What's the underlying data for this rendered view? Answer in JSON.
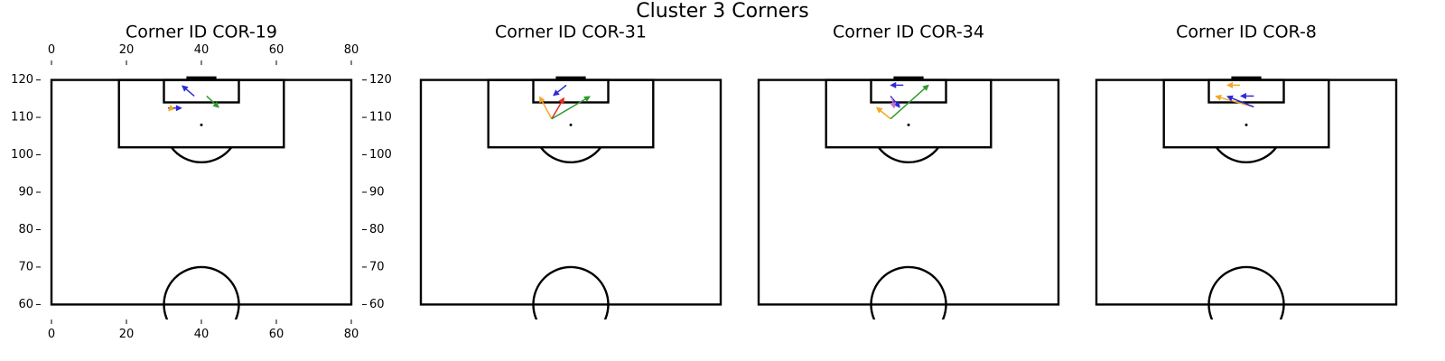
{
  "title": "Cluster 3 Corners",
  "chart_data": [
    {
      "type": "pitch",
      "title": "Corner ID COR-19",
      "xlim": [
        0,
        80
      ],
      "ylim": [
        56,
        124
      ],
      "xticks": [
        0,
        20,
        40,
        60,
        80
      ],
      "xtick_sides": [
        "top",
        "bottom"
      ],
      "yticks": [
        60,
        70,
        80,
        90,
        100,
        110,
        120
      ],
      "ytick_sides": [
        "left",
        "right"
      ],
      "arrows": [
        {
          "x": 38.1,
          "y": 115.7,
          "end_x": 34.7,
          "end_y": 118.6,
          "color": "#2b2bd6"
        },
        {
          "x": 41.4,
          "y": 115.7,
          "end_x": 44.8,
          "end_y": 112.5,
          "color": "#2e9a2e"
        },
        {
          "x": 31.1,
          "y": 112.5,
          "end_x": 34.9,
          "end_y": 112.5,
          "color": "#2b2bd6"
        },
        {
          "x": 32.0,
          "y": 112.5,
          "end_x": 31.1,
          "end_y": 111.6,
          "color": "#f5a623"
        }
      ]
    },
    {
      "type": "pitch",
      "title": "Corner ID COR-31",
      "xlim": [
        0,
        80
      ],
      "ylim": [
        56,
        124
      ],
      "arrows": [
        {
          "x": 34.9,
          "y": 109.6,
          "end_x": 31.6,
          "end_y": 115.7,
          "color": "#f5a623"
        },
        {
          "x": 34.9,
          "y": 109.6,
          "end_x": 38.3,
          "end_y": 115.4,
          "color": "#e03020"
        },
        {
          "x": 34.9,
          "y": 109.6,
          "end_x": 45.3,
          "end_y": 115.7,
          "color": "#2e9a2e"
        },
        {
          "x": 38.8,
          "y": 118.6,
          "end_x": 35.2,
          "end_y": 115.7,
          "color": "#2b2bd6"
        }
      ]
    },
    {
      "type": "pitch",
      "title": "Corner ID COR-34",
      "xlim": [
        0,
        80
      ],
      "ylim": [
        56,
        124
      ],
      "arrows": [
        {
          "x": 35.2,
          "y": 109.6,
          "end_x": 31.3,
          "end_y": 112.8,
          "color": "#f5a623"
        },
        {
          "x": 35.2,
          "y": 109.6,
          "end_x": 45.5,
          "end_y": 118.8,
          "color": "#2e9a2e"
        },
        {
          "x": 38.6,
          "y": 118.6,
          "end_x": 35.0,
          "end_y": 118.6,
          "color": "#2b2bd6"
        },
        {
          "x": 35.2,
          "y": 115.7,
          "end_x": 37.8,
          "end_y": 112.5,
          "color": "#2b2bd6"
        },
        {
          "x": 35.6,
          "y": 115.2,
          "end_x": 36.2,
          "end_y": 112.3,
          "color": "#c070d0"
        }
      ]
    },
    {
      "type": "pitch",
      "title": "Corner ID COR-8",
      "xlim": [
        0,
        80
      ],
      "ylim": [
        56,
        124
      ],
      "arrows": [
        {
          "x": 38.3,
          "y": 118.6,
          "end_x": 34.7,
          "end_y": 118.6,
          "color": "#f5a623"
        },
        {
          "x": 42.0,
          "y": 115.7,
          "end_x": 38.3,
          "end_y": 115.7,
          "color": "#2b2bd6"
        },
        {
          "x": 42.0,
          "y": 112.8,
          "end_x": 31.6,
          "end_y": 115.7,
          "color": "#f5a623"
        },
        {
          "x": 42.0,
          "y": 112.8,
          "end_x": 34.7,
          "end_y": 115.7,
          "color": "#2b2bd6"
        }
      ]
    }
  ]
}
